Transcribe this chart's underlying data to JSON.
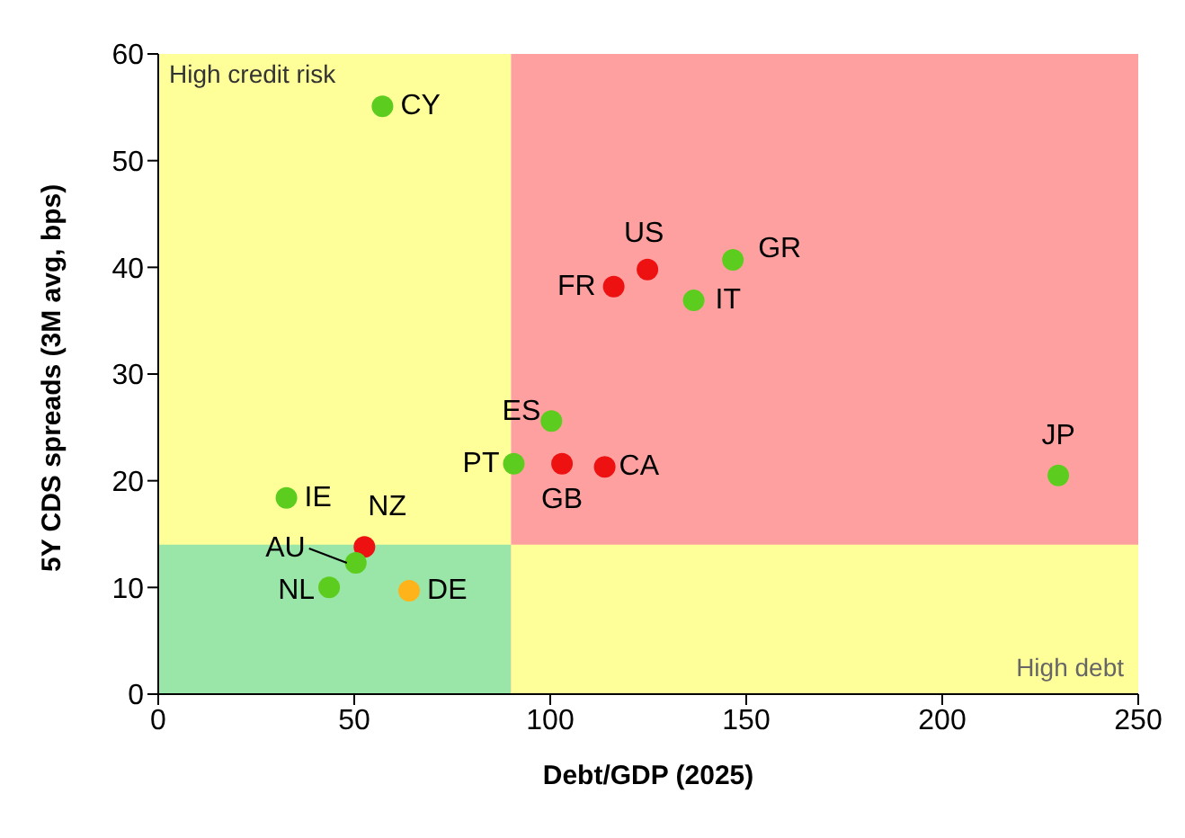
{
  "chart_data": {
    "type": "scatter",
    "xlabel": "Debt/GDP (2025)",
    "ylabel": "5Y CDS spreads (3M avg, bps)",
    "x": [
      57.2,
      124.8,
      116.2,
      146.6,
      136.6,
      100.3,
      90.7,
      103,
      113.9,
      229.6,
      32.7,
      52.6,
      50.4,
      43.6,
      64
    ],
    "values": [
      55.1,
      39.8,
      38.2,
      40.7,
      36.9,
      25.6,
      21.6,
      21.6,
      21.3,
      20.5,
      18.4,
      13.8,
      12.3,
      10,
      9.7
    ],
    "colors": [
      "#5ccd1e",
      "#ee1111",
      "#ee1111",
      "#5ccd1e",
      "#5ccd1e",
      "#5ccd1e",
      "#5ccd1e",
      "#ee1111",
      "#ee1111",
      "#5ccd1e",
      "#5ccd1e",
      "#ee1111",
      "#5ccd1e",
      "#5ccd1e",
      "#ffb31a"
    ],
    "marker": "circle",
    "annotations": [
      {
        "text": "CY",
        "x": 57.2,
        "y": 55.1
      },
      {
        "text": "US",
        "x": 124.8,
        "y": 39.8
      },
      {
        "text": "FR",
        "x": 116.2,
        "y": 38.2
      },
      {
        "text": "GR",
        "x": 146.6,
        "y": 40.7
      },
      {
        "text": "IT",
        "x": 136.6,
        "y": 36.9
      },
      {
        "text": "ES",
        "x": 100.3,
        "y": 25.6
      },
      {
        "text": "PT",
        "x": 90.7,
        "y": 21.6
      },
      {
        "text": "GB",
        "x": 103,
        "y": 21.6
      },
      {
        "text": "CA",
        "x": 113.9,
        "y": 21.3
      },
      {
        "text": "JP",
        "x": 229.6,
        "y": 20.5
      },
      {
        "text": "IE",
        "x": 32.7,
        "y": 18.4
      },
      {
        "text": "NZ",
        "x": 52.6,
        "y": 13.8
      },
      {
        "text": "AU",
        "x": 50.4,
        "y": 12.3
      },
      {
        "text": "NL",
        "x": 43.6,
        "y": 10
      },
      {
        "text": "DE",
        "x": 64,
        "y": 9.7
      }
    ],
    "bands": [
      {
        "axis": "x",
        "from": 0,
        "to": 90,
        "label": "High credit risk",
        "color": "#ffff99"
      },
      {
        "axis": "y",
        "from": 0,
        "to": 14,
        "color": "#99e6a8"
      },
      {
        "axis": "x",
        "from": 90,
        "to": 250,
        "color": "#ffa0a0"
      },
      {
        "axis": "y",
        "from": 0,
        "to": 14,
        "label": "High debt",
        "color": "#ffff99"
      }
    ],
    "xlim": [
      0,
      250
    ],
    "xticks": [
      0,
      50,
      100,
      150,
      200,
      250
    ],
    "ylim": [
      0,
      60
    ],
    "yticks": [
      0,
      10,
      20,
      30,
      40,
      50,
      60
    ],
    "grid": false,
    "legend": false
  }
}
